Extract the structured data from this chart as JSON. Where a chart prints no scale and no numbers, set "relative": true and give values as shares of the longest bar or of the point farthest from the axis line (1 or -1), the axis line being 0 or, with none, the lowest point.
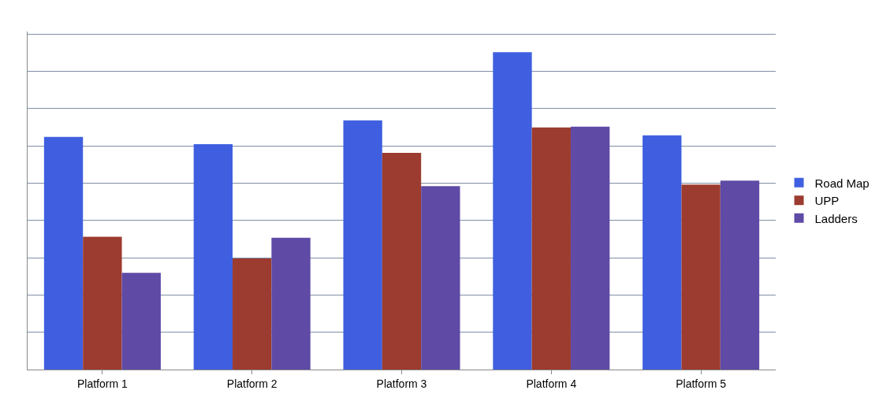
{
  "chart_data": {
    "type": "bar",
    "relative": true,
    "grid": "y",
    "legend": "right",
    "categories": [
      "Platform 1",
      "Platform 2",
      "Platform 3",
      "Platform 4",
      "Platform 5"
    ],
    "series": [
      {
        "name": "Road Map",
        "color": "#3f5fe0",
        "values": [
          0.733,
          0.71,
          0.785,
          1,
          0.738
        ]
      },
      {
        "name": "UPP",
        "color": "#9c3b2f",
        "values": [
          0.418,
          0.35,
          0.683,
          0.763,
          0.583
        ]
      },
      {
        "name": "Ladders",
        "color": "#5f4aa6",
        "values": [
          0.305,
          0.415,
          0.578,
          0.765,
          0.595
        ]
      }
    ]
  }
}
